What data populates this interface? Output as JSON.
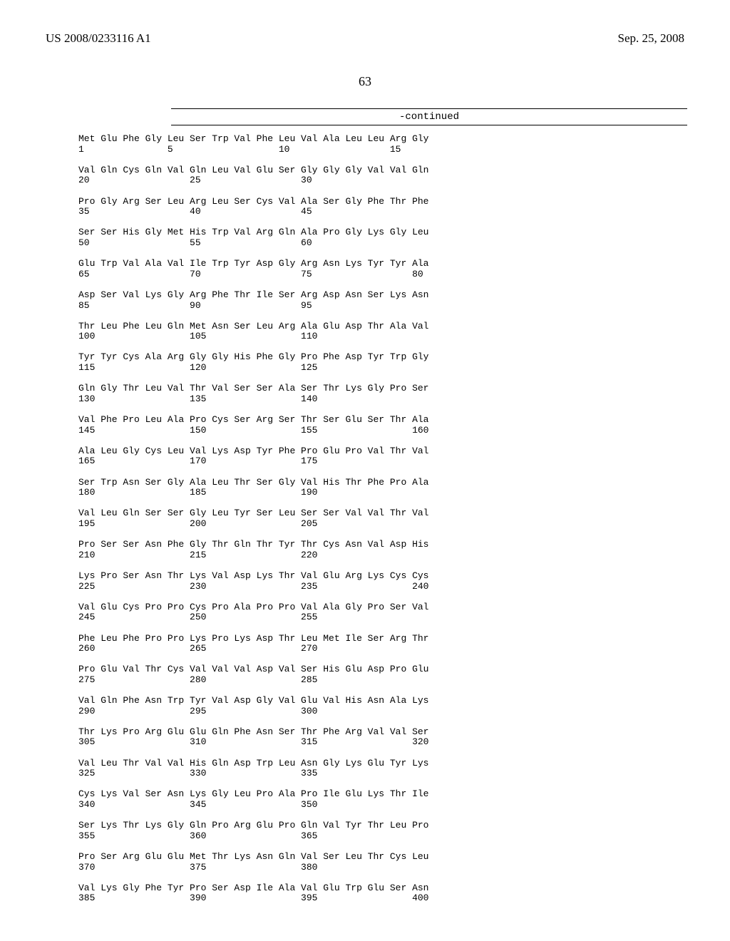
{
  "header": {
    "left": "US 2008/0233116 A1",
    "right": "Sep. 25, 2008"
  },
  "page_number": "63",
  "continued_label": "-continued",
  "sequence_blocks": [
    {
      "aa": "Met Glu Phe Gly Leu Ser Trp Val Phe Leu Val Ala Leu Leu Arg Gly",
      "nums": "1               5                   10                  15"
    },
    {
      "aa": "Val Gln Cys Gln Val Gln Leu Val Glu Ser Gly Gly Gly Val Val Gln",
      "nums": "20                  25                  30"
    },
    {
      "aa": "Pro Gly Arg Ser Leu Arg Leu Ser Cys Val Ala Ser Gly Phe Thr Phe",
      "nums": "35                  40                  45"
    },
    {
      "aa": "Ser Ser His Gly Met His Trp Val Arg Gln Ala Pro Gly Lys Gly Leu",
      "nums": "50                  55                  60"
    },
    {
      "aa": "Glu Trp Val Ala Val Ile Trp Tyr Asp Gly Arg Asn Lys Tyr Tyr Ala",
      "nums": "65                  70                  75                  80"
    },
    {
      "aa": "Asp Ser Val Lys Gly Arg Phe Thr Ile Ser Arg Asp Asn Ser Lys Asn",
      "nums": "85                  90                  95"
    },
    {
      "aa": "Thr Leu Phe Leu Gln Met Asn Ser Leu Arg Ala Glu Asp Thr Ala Val",
      "nums": "100                 105                 110"
    },
    {
      "aa": "Tyr Tyr Cys Ala Arg Gly Gly His Phe Gly Pro Phe Asp Tyr Trp Gly",
      "nums": "115                 120                 125"
    },
    {
      "aa": "Gln Gly Thr Leu Val Thr Val Ser Ser Ala Ser Thr Lys Gly Pro Ser",
      "nums": "130                 135                 140"
    },
    {
      "aa": "Val Phe Pro Leu Ala Pro Cys Ser Arg Ser Thr Ser Glu Ser Thr Ala",
      "nums": "145                 150                 155                 160"
    },
    {
      "aa": "Ala Leu Gly Cys Leu Val Lys Asp Tyr Phe Pro Glu Pro Val Thr Val",
      "nums": "165                 170                 175"
    },
    {
      "aa": "Ser Trp Asn Ser Gly Ala Leu Thr Ser Gly Val His Thr Phe Pro Ala",
      "nums": "180                 185                 190"
    },
    {
      "aa": "Val Leu Gln Ser Ser Gly Leu Tyr Ser Leu Ser Ser Val Val Thr Val",
      "nums": "195                 200                 205"
    },
    {
      "aa": "Pro Ser Ser Asn Phe Gly Thr Gln Thr Tyr Thr Cys Asn Val Asp His",
      "nums": "210                 215                 220"
    },
    {
      "aa": "Lys Pro Ser Asn Thr Lys Val Asp Lys Thr Val Glu Arg Lys Cys Cys",
      "nums": "225                 230                 235                 240"
    },
    {
      "aa": "Val Glu Cys Pro Pro Cys Pro Ala Pro Pro Val Ala Gly Pro Ser Val",
      "nums": "245                 250                 255"
    },
    {
      "aa": "Phe Leu Phe Pro Pro Lys Pro Lys Asp Thr Leu Met Ile Ser Arg Thr",
      "nums": "260                 265                 270"
    },
    {
      "aa": "Pro Glu Val Thr Cys Val Val Val Asp Val Ser His Glu Asp Pro Glu",
      "nums": "275                 280                 285"
    },
    {
      "aa": "Val Gln Phe Asn Trp Tyr Val Asp Gly Val Glu Val His Asn Ala Lys",
      "nums": "290                 295                 300"
    },
    {
      "aa": "Thr Lys Pro Arg Glu Glu Gln Phe Asn Ser Thr Phe Arg Val Val Ser",
      "nums": "305                 310                 315                 320"
    },
    {
      "aa": "Val Leu Thr Val Val His Gln Asp Trp Leu Asn Gly Lys Glu Tyr Lys",
      "nums": "325                 330                 335"
    },
    {
      "aa": "Cys Lys Val Ser Asn Lys Gly Leu Pro Ala Pro Ile Glu Lys Thr Ile",
      "nums": "340                 345                 350"
    },
    {
      "aa": "Ser Lys Thr Lys Gly Gln Pro Arg Glu Pro Gln Val Tyr Thr Leu Pro",
      "nums": "355                 360                 365"
    },
    {
      "aa": "Pro Ser Arg Glu Glu Met Thr Lys Asn Gln Val Ser Leu Thr Cys Leu",
      "nums": "370                 375                 380"
    },
    {
      "aa": "Val Lys Gly Phe Tyr Pro Ser Asp Ile Ala Val Glu Trp Glu Ser Asn",
      "nums": "385                 390                 395                 400"
    }
  ]
}
